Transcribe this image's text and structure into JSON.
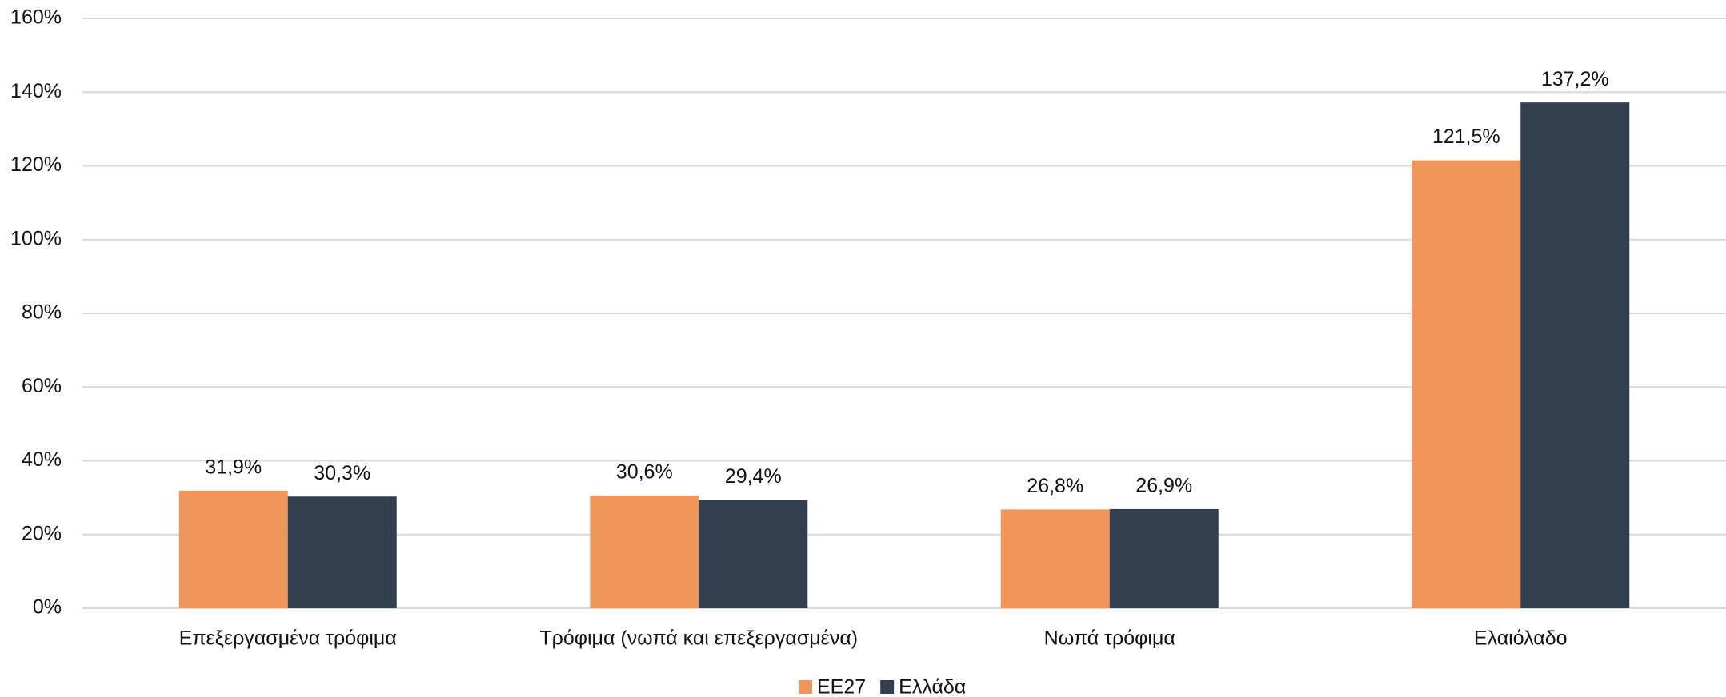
{
  "chart_data": {
    "type": "bar",
    "categories": [
      "Επεξεργασμένα τρόφιμα",
      "Τρόφιμα (νωπά και επεξεργασμένα)",
      "Νωπά τρόφιμα",
      "Ελαιόλαδο"
    ],
    "series": [
      {
        "name": "ΕΕ27",
        "color": "#f0965a",
        "values": [
          31.9,
          30.6,
          26.8,
          121.5
        ],
        "value_labels": [
          "31,9%",
          "30,6%",
          "26,8%",
          "121,5%"
        ]
      },
      {
        "name": "Ελλάδα",
        "color": "#323f4e",
        "values": [
          30.3,
          29.4,
          26.9,
          137.2
        ],
        "value_labels": [
          "30,3%",
          "29,4%",
          "26,9%",
          "137,2%"
        ]
      }
    ],
    "ylim": [
      0,
      160
    ],
    "yticks": [
      {
        "value": 0,
        "label": "0%"
      },
      {
        "value": 20,
        "label": "20%"
      },
      {
        "value": 40,
        "label": "40%"
      },
      {
        "value": 60,
        "label": "60%"
      },
      {
        "value": 80,
        "label": "80%"
      },
      {
        "value": 100,
        "label": "100%"
      },
      {
        "value": 120,
        "label": "120%"
      },
      {
        "value": 140,
        "label": "140%"
      },
      {
        "value": 160,
        "label": "160%"
      }
    ],
    "grid": true,
    "legend": "bottom"
  }
}
